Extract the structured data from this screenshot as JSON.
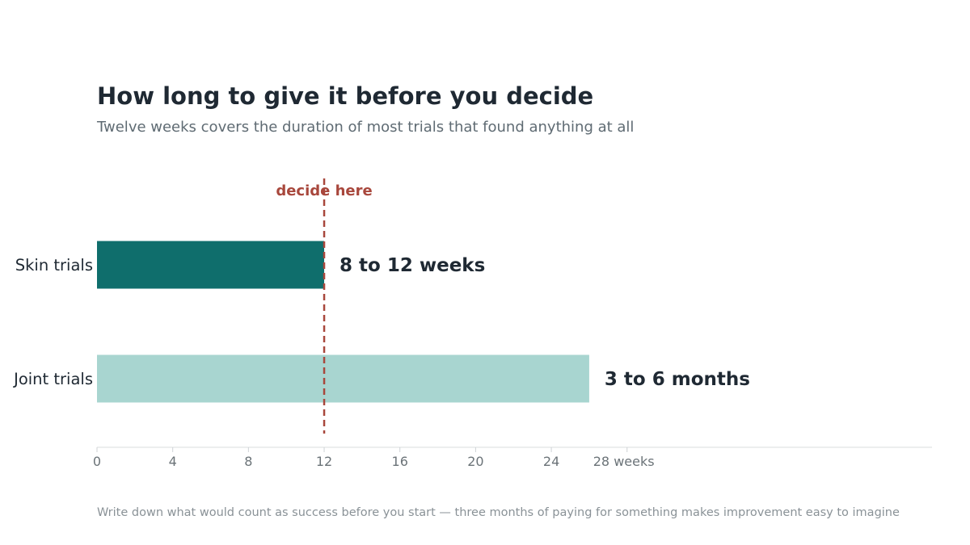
{
  "title": "How long to give it before you decide",
  "subtitle": "Twelve weeks covers the duration of most trials that found anything at all",
  "footnote": "Write down what would count as success before you start — three months of paying for something makes improvement easy to imagine",
  "chart_data": {
    "type": "bar",
    "orientation": "horizontal",
    "categories": [
      "Skin trials",
      "Joint trials"
    ],
    "values": [
      12,
      26
    ],
    "value_labels": [
      "8 to 12 weeks",
      "3 to 6 months"
    ],
    "colors": [
      "#0f6e6c",
      "#a8d5d0"
    ],
    "xlim": [
      0,
      28
    ],
    "xticks": [
      0,
      4,
      8,
      12,
      16,
      20,
      24,
      28
    ],
    "xtick_labels": [
      "0",
      "4",
      "8",
      "12",
      "16",
      "20",
      "24",
      "28 weeks"
    ],
    "reference_line": {
      "x": 12,
      "label": "decide here",
      "color": "#a8473c"
    },
    "grid": false
  }
}
